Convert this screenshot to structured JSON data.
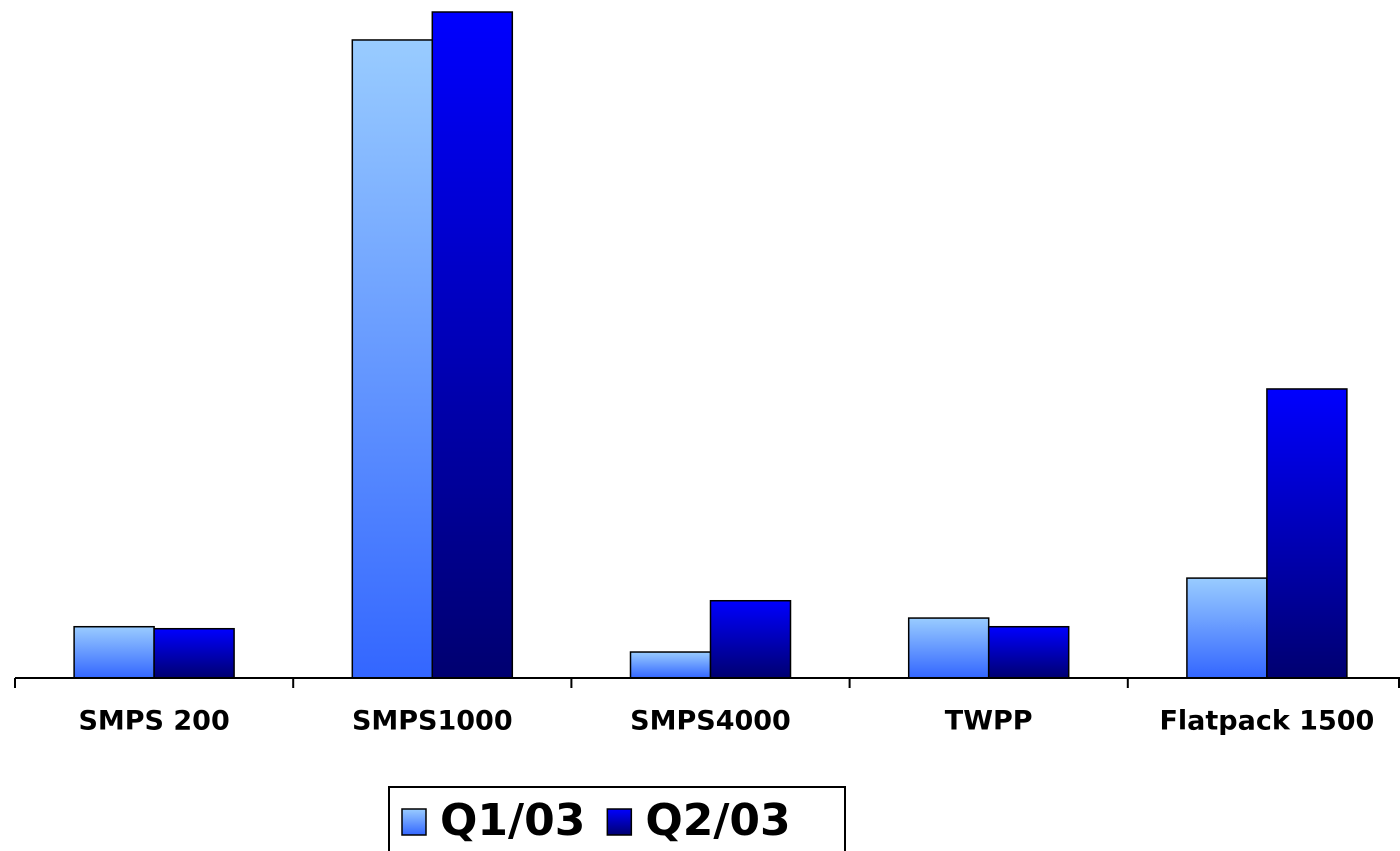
{
  "chart_data": {
    "type": "bar",
    "categories": [
      "SMPS 200",
      "SMPS1000",
      "SMPS4000",
      "TWPP",
      "Flatpack 1500"
    ],
    "series": [
      {
        "name": "Q1/03",
        "color": "#99ccff",
        "values": [
          7.7,
          95.8,
          3.9,
          9.0,
          15.0
        ]
      },
      {
        "name": "Q2/03",
        "color": "#0000ff",
        "values": [
          7.4,
          100,
          11.6,
          7.7,
          43.4
        ]
      }
    ],
    "ylim": [
      0,
      100
    ],
    "legend": "bottom"
  }
}
